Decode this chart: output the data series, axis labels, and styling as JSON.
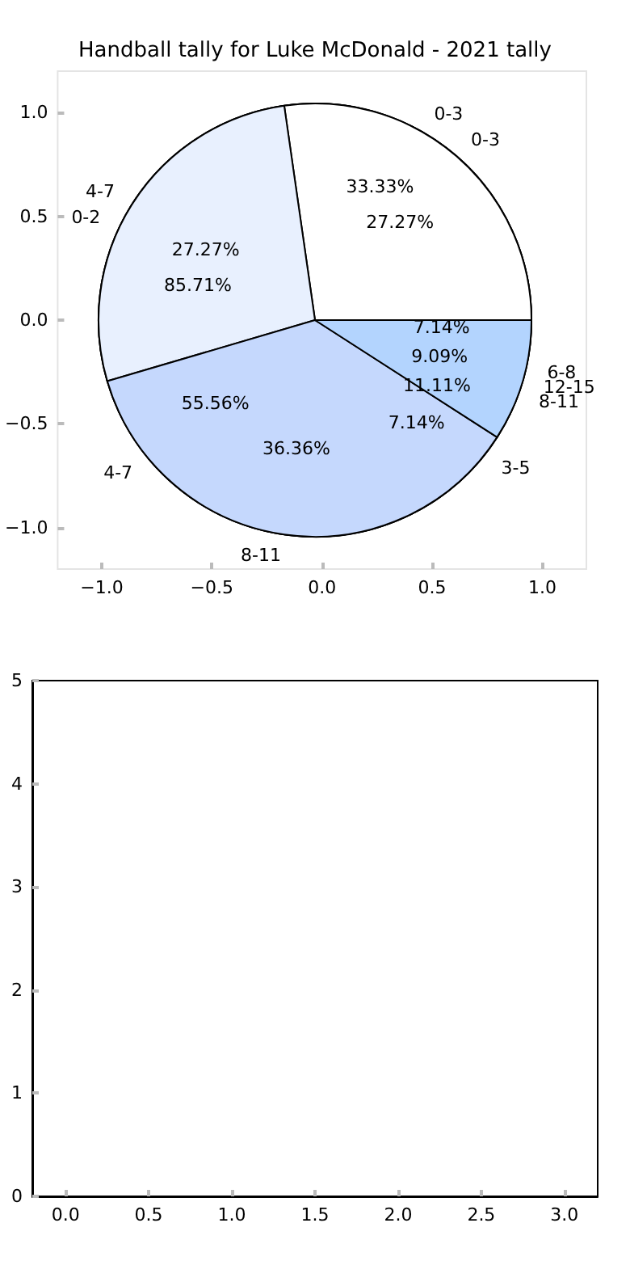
{
  "chart_data": [
    {
      "type": "pie",
      "title": "Handball tally for Luke McDonald - 2021 tally",
      "categories": [
        "0-3",
        "4-7",
        "8-11",
        "12-15"
      ],
      "values": [
        27.27,
        27.27,
        36.36,
        9.09
      ],
      "value_labels": [
        "27.27%",
        "27.27%",
        "36.36%",
        "9.09%"
      ],
      "colors": [
        "#ffffff",
        "#e8f0fe",
        "#c5d8fd",
        "#b3d4fe"
      ]
    },
    {
      "type": "pie",
      "categories": [
        "0-3",
        "4-7",
        "8-11"
      ],
      "values": [
        33.33,
        55.56,
        11.11
      ],
      "value_labels": [
        "33.33%",
        "55.56%",
        "11.11%"
      ],
      "colors": [
        "#ffffff",
        "#e8f0fe",
        "#c5d8fd"
      ]
    },
    {
      "type": "pie",
      "categories": [
        "0-2",
        "3-5",
        "6-8"
      ],
      "values": [
        85.71,
        7.14,
        7.14
      ],
      "value_labels": [
        "85.71%",
        "7.14%",
        "7.14%"
      ],
      "colors": [
        "#ffffff",
        "#e8f0fe",
        "#c5d8fd"
      ]
    },
    {
      "type": "scatter",
      "xlim": [
        -1.2,
        1.2
      ],
      "ylim": [
        -1.2,
        1.2
      ],
      "xticks": [
        {
          "value": -1,
          "label": "−1.0"
        },
        {
          "value": -0.5,
          "label": "−0.5"
        },
        {
          "value": 0,
          "label": "0.0"
        },
        {
          "value": 0.5,
          "label": "0.5"
        },
        {
          "value": 1,
          "label": "1.0"
        }
      ],
      "yticks": [
        {
          "value": -1,
          "label": "−1.0"
        },
        {
          "value": -0.5,
          "label": "−0.5"
        },
        {
          "value": 0,
          "label": "0.0"
        },
        {
          "value": 0.5,
          "label": "0.5"
        },
        {
          "value": 1,
          "label": "1.0"
        }
      ]
    },
    {
      "type": "scatter",
      "xlim": [
        -0.2,
        3.2
      ],
      "ylim": [
        0,
        5
      ],
      "xticks": [
        {
          "value": 0,
          "label": "0.0"
        },
        {
          "value": 0.5,
          "label": "0.5"
        },
        {
          "value": 1,
          "label": "1.0"
        },
        {
          "value": 1.5,
          "label": "1.5"
        },
        {
          "value": 2,
          "label": "2.0"
        },
        {
          "value": 2.5,
          "label": "2.5"
        },
        {
          "value": 3,
          "label": "3.0"
        }
      ],
      "yticks": [
        0,
        1,
        2,
        3,
        4,
        5
      ]
    }
  ]
}
